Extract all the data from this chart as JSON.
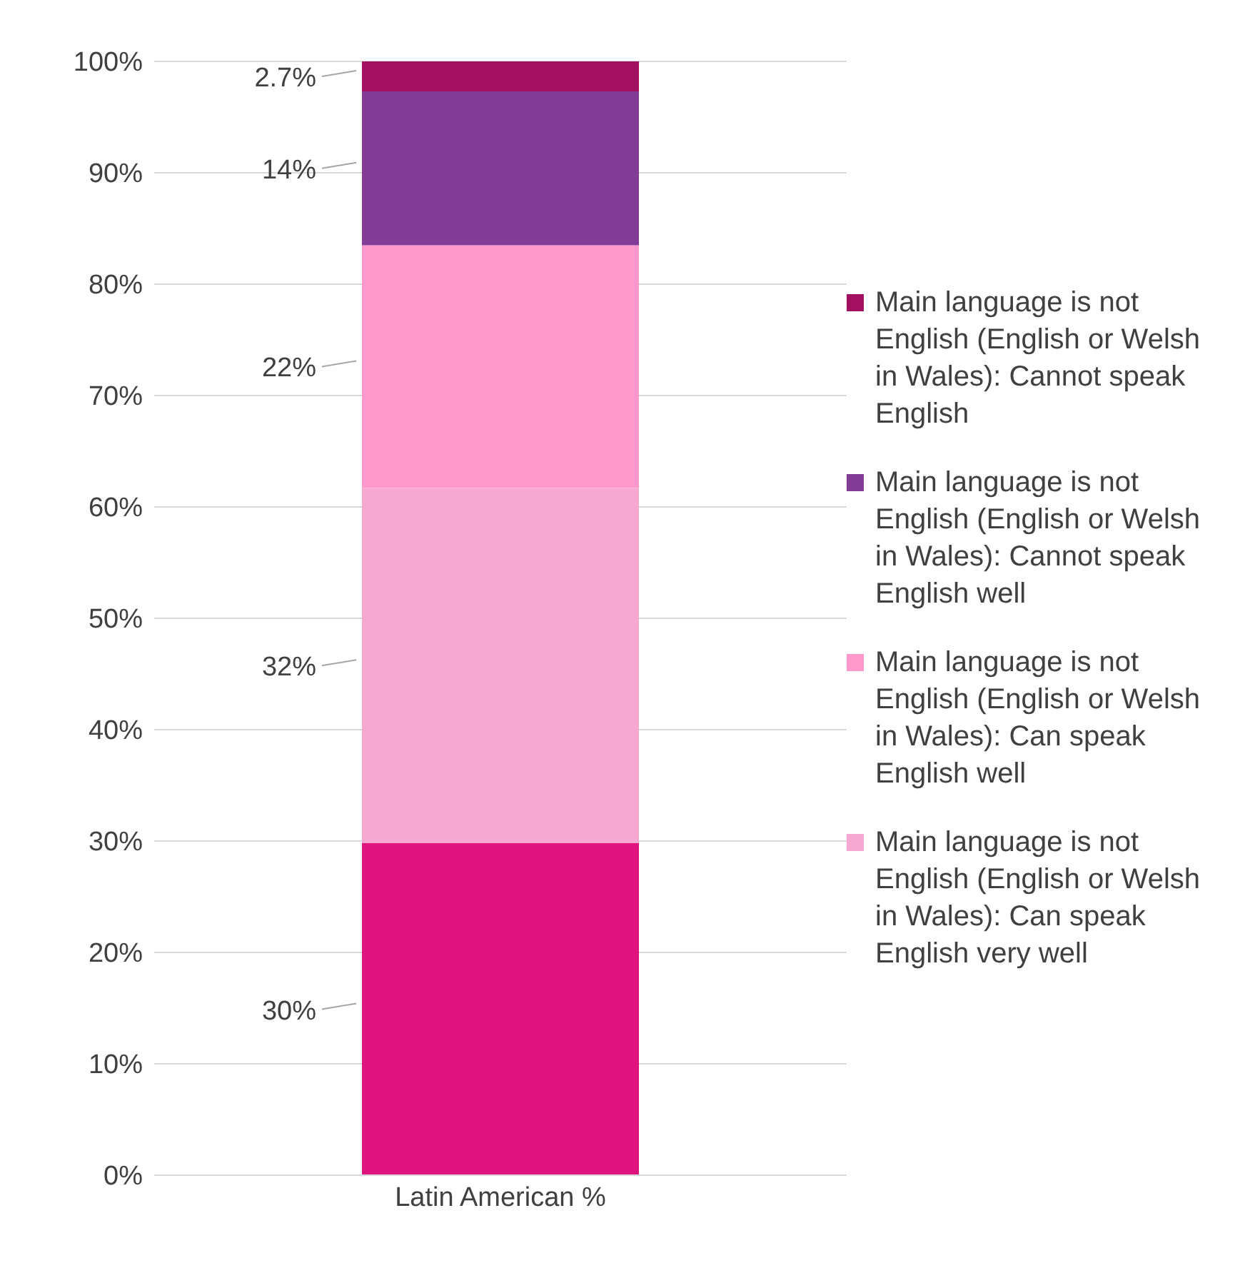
{
  "chart_data": {
    "type": "bar",
    "stacked": true,
    "categories": [
      "Latin American %"
    ],
    "series": [
      {
        "color": "#e0147f",
        "values": [
          29.8
        ],
        "value_labels": [
          "30%"
        ]
      },
      {
        "name": "Main language is not English (English or Welsh in Wales): Can speak English very well",
        "color": "#f7a8d0",
        "values": [
          31.9
        ],
        "value_labels": [
          "32%"
        ]
      },
      {
        "name": "Main language is not English (English or Welsh in Wales): Can speak English well",
        "color": "#ff99cc",
        "values": [
          21.8
        ],
        "value_labels": [
          "22%"
        ]
      },
      {
        "name": "Main language is not English (English or Welsh in Wales): Cannot speak English well",
        "color": "#833c96",
        "values": [
          13.8
        ],
        "value_labels": [
          "14%"
        ]
      },
      {
        "name": "Main language is not English (English or Welsh in Wales): Cannot speak English",
        "color": "#a3105f",
        "values": [
          2.7
        ],
        "value_labels": [
          "2.7%"
        ]
      }
    ],
    "ylim": [
      0,
      100
    ],
    "yticks": [
      {
        "value": 0,
        "label": "0%"
      },
      {
        "value": 10,
        "label": "10%"
      },
      {
        "value": 20,
        "label": "20%"
      },
      {
        "value": 30,
        "label": "30%"
      },
      {
        "value": 40,
        "label": "40%"
      },
      {
        "value": 50,
        "label": "50%"
      },
      {
        "value": 60,
        "label": "60%"
      },
      {
        "value": 70,
        "label": "70%"
      },
      {
        "value": 80,
        "label": "80%"
      },
      {
        "value": 90,
        "label": "90%"
      },
      {
        "value": 100,
        "label": "100%"
      }
    ],
    "grid": "y",
    "legend": "right"
  }
}
